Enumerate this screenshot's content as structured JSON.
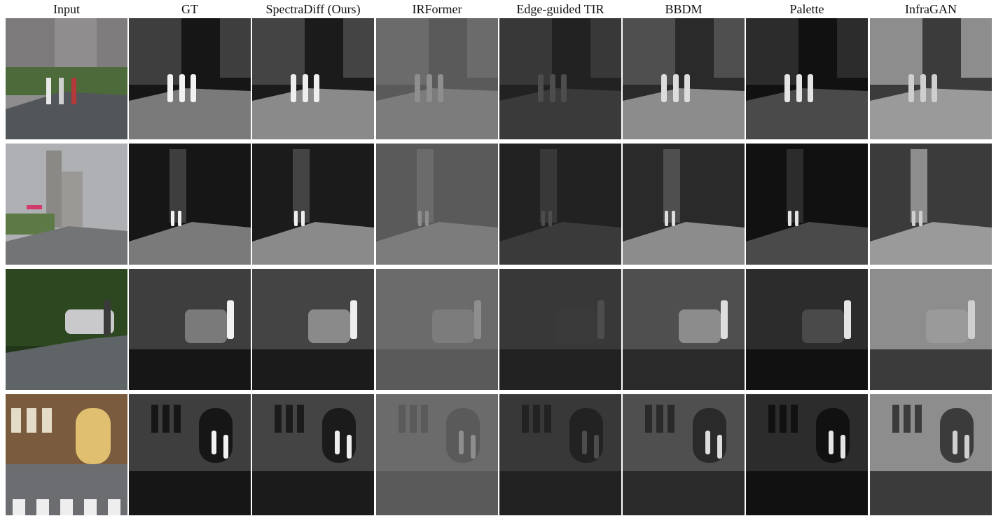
{
  "columns": [
    {
      "label": "Input",
      "key": "input"
    },
    {
      "label": "GT",
      "key": "gt"
    },
    {
      "label": "SpectraDiff (Ours)",
      "key": "spectradiff"
    },
    {
      "label": "IRFormer",
      "key": "irformer"
    },
    {
      "label": "Edge-guided TIR",
      "key": "edgetir"
    },
    {
      "label": "BBDM",
      "key": "bbdm"
    },
    {
      "label": "Palette",
      "key": "palette"
    },
    {
      "label": "InfraGAN",
      "key": "infragan"
    }
  ],
  "rows": [
    {
      "scene": "street-pedestrians",
      "sky": "#8a8888",
      "ground": "#5d6063",
      "people": 3
    },
    {
      "scene": "road-tall-building",
      "sky": "#a9abae",
      "ground": "#7a7a7d",
      "people": 2
    },
    {
      "scene": "park-car-pedestrian",
      "sky": "#1f3316",
      "ground": "#64686a",
      "people": 1
    },
    {
      "scene": "building-entrance",
      "sky": "#8a6f50",
      "ground": "#6d6e72",
      "people": 2
    }
  ],
  "colors": {
    "background": "#ffffff",
    "header_text": "#111111"
  }
}
